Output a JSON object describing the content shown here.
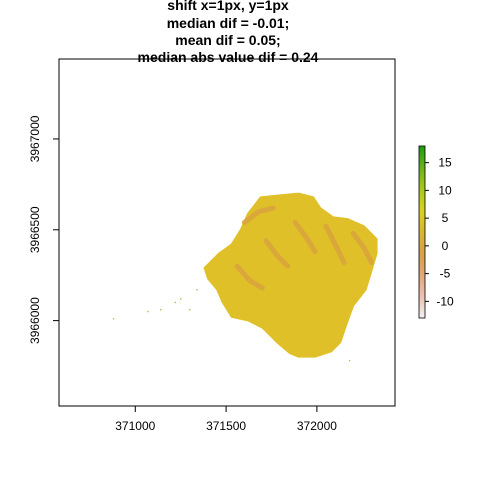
{
  "chart_data": {
    "type": "heatmap",
    "title_lines": [
      "shift x=1px, y=1px",
      "median dif = -0.01;",
      "mean dif = 0.05;",
      "median abs value dif = 0.24"
    ],
    "x_ticks": [
      371000,
      371500,
      372000
    ],
    "y_ticks": [
      3966000,
      3966500,
      3967000
    ],
    "xlim": [
      370580,
      372430
    ],
    "ylim": [
      3965530,
      3967440
    ],
    "legend": {
      "ticks": [
        15,
        10,
        5,
        0,
        -5,
        -10
      ],
      "range": [
        -13,
        18
      ],
      "colors": [
        "#f2f2f2",
        "#ecc0b3",
        "#e0a87a",
        "#d7a04a",
        "#d6b830",
        "#d9d21c",
        "#a8c81a",
        "#68b418",
        "#1e9b12"
      ]
    },
    "dominant_value": 0,
    "dominant_color": "#e0c028",
    "ridge_color": "#d8a040",
    "region_outline": [
      [
        371380,
        3966290
      ],
      [
        371460,
        3966370
      ],
      [
        371530,
        3966420
      ],
      [
        371580,
        3966500
      ],
      [
        371620,
        3966590
      ],
      [
        371690,
        3966680
      ],
      [
        371790,
        3966690
      ],
      [
        371900,
        3966700
      ],
      [
        371980,
        3966680
      ],
      [
        372020,
        3966620
      ],
      [
        372090,
        3966570
      ],
      [
        372170,
        3966560
      ],
      [
        372260,
        3966520
      ],
      [
        372330,
        3966450
      ],
      [
        372330,
        3966370
      ],
      [
        372300,
        3966270
      ],
      [
        372270,
        3966170
      ],
      [
        372200,
        3966080
      ],
      [
        372160,
        3965970
      ],
      [
        372130,
        3965880
      ],
      [
        372080,
        3965830
      ],
      [
        371990,
        3965800
      ],
      [
        371900,
        3965800
      ],
      [
        371850,
        3965820
      ],
      [
        371780,
        3965880
      ],
      [
        371700,
        3965960
      ],
      [
        371620,
        3966000
      ],
      [
        371530,
        3966020
      ],
      [
        371480,
        3966100
      ],
      [
        371450,
        3966170
      ],
      [
        371400,
        3966230
      ]
    ],
    "ridges": [
      [
        [
          371600,
          3966540
        ],
        [
          371680,
          3966600
        ],
        [
          371760,
          3966620
        ]
      ],
      [
        [
          371720,
          3966440
        ],
        [
          371780,
          3966360
        ],
        [
          371840,
          3966300
        ]
      ],
      [
        [
          371880,
          3966540
        ],
        [
          371940,
          3966460
        ],
        [
          371990,
          3966380
        ]
      ],
      [
        [
          372050,
          3966520
        ],
        [
          372100,
          3966420
        ],
        [
          372150,
          3966320
        ]
      ],
      [
        [
          372200,
          3966480
        ],
        [
          372260,
          3966400
        ],
        [
          372300,
          3966320
        ]
      ],
      [
        [
          371560,
          3966300
        ],
        [
          371630,
          3966220
        ],
        [
          371700,
          3966180
        ]
      ]
    ],
    "isolated_points": [
      [
        370880,
        3966010
      ],
      [
        371070,
        3966050
      ],
      [
        371140,
        3966060
      ],
      [
        371220,
        3966100
      ],
      [
        371250,
        3966120
      ],
      [
        371340,
        3966170
      ],
      [
        371300,
        3966060
      ],
      [
        372180,
        3965780
      ]
    ]
  }
}
